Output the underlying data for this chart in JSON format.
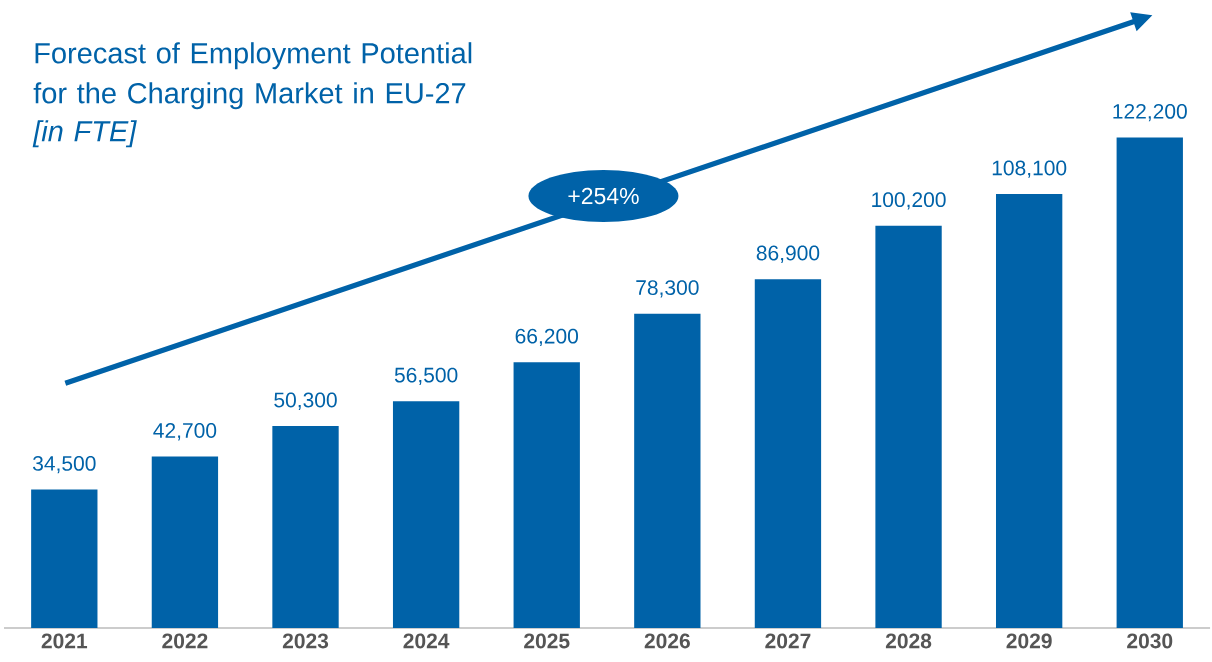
{
  "chart_data": {
    "type": "bar",
    "title": "Forecast of Employment Potential for the Charging Market in EU-27",
    "subtitle": "[in FTE]",
    "categories": [
      "2021",
      "2022",
      "2023",
      "2024",
      "2025",
      "2026",
      "2027",
      "2028",
      "2029",
      "2030"
    ],
    "values": [
      34500,
      42700,
      50300,
      56500,
      66200,
      78300,
      86900,
      100200,
      108100,
      122200
    ],
    "value_labels": [
      "34,500",
      "42,700",
      "50,300",
      "56,500",
      "66,200",
      "78,300",
      "86,900",
      "100,200",
      "108,100",
      "122,200"
    ],
    "color": "#0062a8",
    "tick_labels": "x",
    "annotations": [
      "+254%"
    ]
  }
}
